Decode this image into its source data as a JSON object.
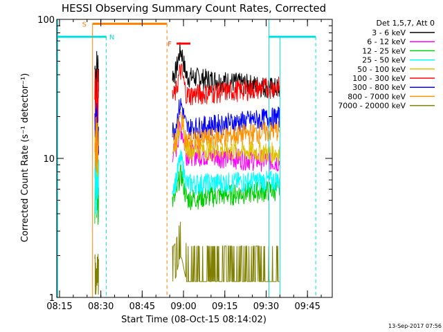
{
  "chart_data": {
    "type": "line",
    "title": "HESSI Observing Summary Count Rates, Corrected",
    "xlabel": "Start Time (08-Oct-15 08:14:02)",
    "ylabel": "Corrected Count Rate (s⁻¹ detector⁻¹)",
    "xlim_minutes": [
      0,
      100
    ],
    "ylim": [
      1,
      100
    ],
    "yscale": "log",
    "x_ticks": [
      {
        "label": "08:15",
        "minute": 1
      },
      {
        "label": "08:30",
        "minute": 16
      },
      {
        "label": "08:45",
        "minute": 31
      },
      {
        "label": "09:00",
        "minute": 46
      },
      {
        "label": "09:15",
        "minute": 61
      },
      {
        "label": "09:30",
        "minute": 76
      },
      {
        "label": "09:45",
        "minute": 91
      }
    ],
    "y_ticks": [
      {
        "label": "1",
        "value": 1
      },
      {
        "label": "10",
        "value": 10
      },
      {
        "label": "100",
        "value": 100
      }
    ],
    "legend_title": "Det 1,5,7, Att 0",
    "legend_position": "right",
    "footer_date": "13-Sep-2017 07:56",
    "markers": [
      {
        "label": "S",
        "color": "#ff8000"
      },
      {
        "label": "N",
        "color": "#00e0e0"
      },
      {
        "label": "F",
        "color": "#ff4000"
      }
    ],
    "series": [
      {
        "name": "3 - 6 keV",
        "color": "#000000",
        "level": 40,
        "end": 32
      },
      {
        "name": "6 - 12 keV",
        "color": "#ff00ff",
        "level": 11,
        "end": 9.5
      },
      {
        "name": "12 - 25 keV",
        "color": "#00cc00",
        "level": 5,
        "end": 6
      },
      {
        "name": "25 - 50 keV",
        "color": "#00ffff",
        "level": 6.5,
        "end": 7
      },
      {
        "name": "50 - 100 keV",
        "color": "#e0c000",
        "level": 12,
        "end": 11
      },
      {
        "name": "100 - 300 keV",
        "color": "#ff0000",
        "level": 28,
        "end": 33
      },
      {
        "name": "300 - 800 keV",
        "color": "#0000ff",
        "level": 16,
        "end": 20
      },
      {
        "name": "800 - 7000 keV",
        "color": "#ff9000",
        "level": 13,
        "end": 16
      },
      {
        "name": "7000 - 20000 keV",
        "color": "#808000",
        "level": 1.3,
        "end": 1.3
      }
    ]
  }
}
